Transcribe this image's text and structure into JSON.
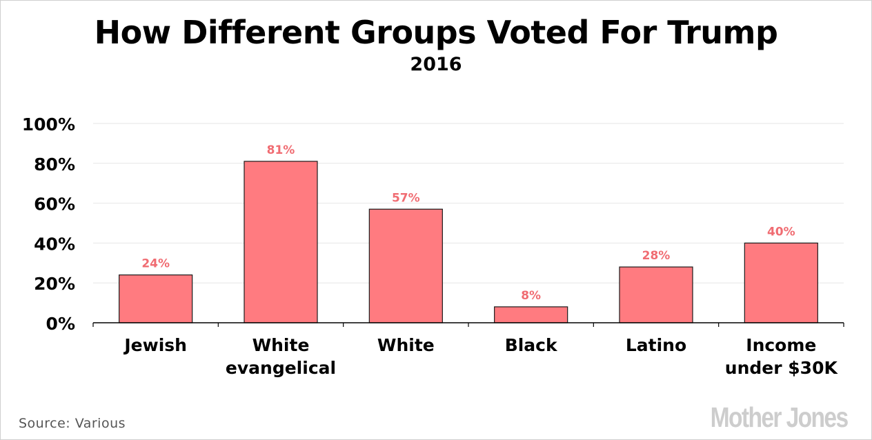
{
  "header": {
    "title": "How Different Groups Voted For Trump",
    "subtitle": "2016"
  },
  "footer": {
    "source": "Source: Various",
    "logo": "MotherJones"
  },
  "colors": {
    "bar": "#ff7b80",
    "value_label": "#f06c72",
    "bar_outline": "#1a1a1a",
    "grid": "#e6e6e6",
    "axis": "#000000"
  },
  "chart_data": {
    "type": "bar",
    "categories": [
      [
        "Jewish"
      ],
      [
        "White",
        "evangelical"
      ],
      [
        "White"
      ],
      [
        "Black"
      ],
      [
        "Latino"
      ],
      [
        "Income",
        "under $30K"
      ]
    ],
    "values": [
      24,
      81,
      57,
      8,
      28,
      40
    ],
    "value_labels": [
      "24%",
      "81%",
      "57%",
      "8%",
      "28%",
      "40%"
    ],
    "yticks": [
      0,
      20,
      40,
      60,
      80,
      100
    ],
    "ytick_labels": [
      "0%",
      "20%",
      "40%",
      "60%",
      "80%",
      "100%"
    ],
    "ylim": [
      0,
      100
    ],
    "grid": true,
    "legend": "none"
  }
}
